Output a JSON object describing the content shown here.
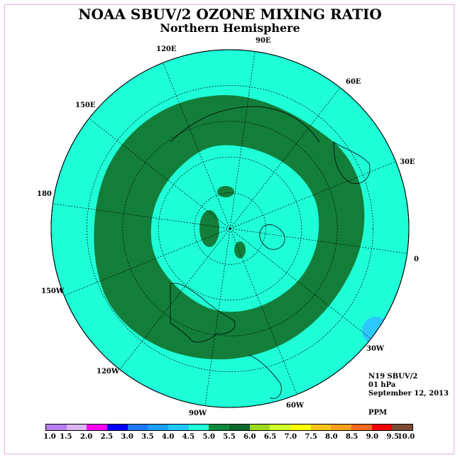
{
  "title": "NOAA SBUV/2 OZONE MIXING RATIO",
  "subtitle": "Northern Hemisphere",
  "longitude_labels": [
    "0",
    "30E",
    "60E",
    "90E",
    "120E",
    "150E",
    "180",
    "150W",
    "120W",
    "90W",
    "60W",
    "30W"
  ],
  "info": {
    "satellite": "N19 SBUV/2",
    "level": "01 hPa",
    "date": "September 12, 2013",
    "units": "PPM"
  },
  "colorbar": {
    "ticks": [
      "1.0",
      "1.5",
      "2.0",
      "2.5",
      "3.0",
      "3.5",
      "4.0",
      "4.5",
      "5.0",
      "5.5",
      "6.0",
      "6.5",
      "7.0",
      "7.5",
      "8.0",
      "8.5",
      "9.0",
      "9.5",
      "10.0"
    ],
    "colors": [
      "#b77ff0",
      "#dcb4f0",
      "#ff00ff",
      "#0000ff",
      "#1e78ff",
      "#1e9eff",
      "#20c8ff",
      "#20ffd8",
      "#0e8a3c",
      "#0b6a2c",
      "#9bd81e",
      "#d0ff2c",
      "#ffff00",
      "#f5c31e",
      "#f5a01e",
      "#f56a1e",
      "#f00000",
      "#7a4a32"
    ]
  },
  "map_colors": {
    "background": "#1effd8",
    "band": "#137e3a",
    "high_low": "#2cc8ff",
    "coast": "#000000"
  }
}
